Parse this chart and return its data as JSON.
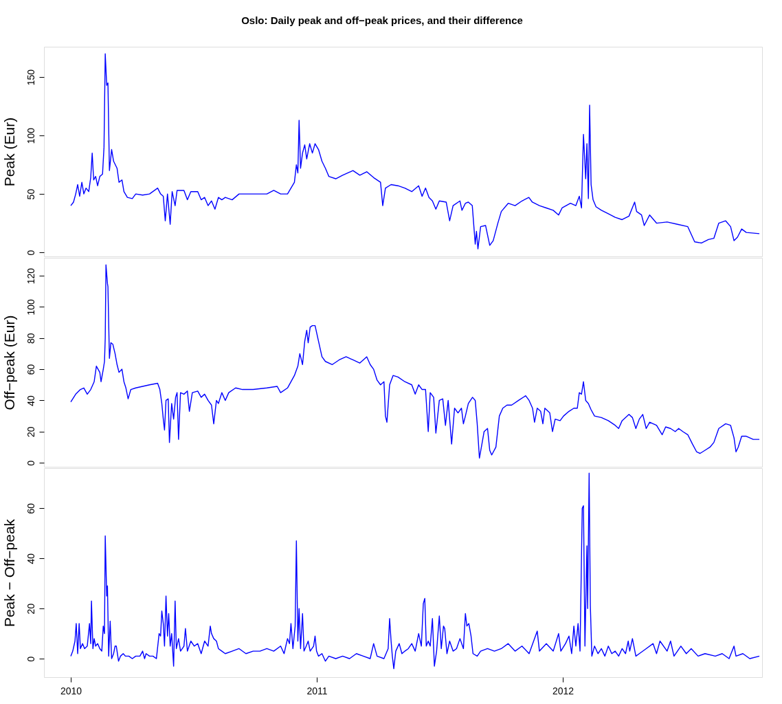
{
  "chart_data": [
    {
      "type": "line",
      "title": "Oslo: Daily peak and off−peak prices, and their difference",
      "ylabel": "Peak (Eur)",
      "xlim": [
        2009.891,
        2012.81
      ],
      "xticks": [
        2010,
        2011,
        2012
      ],
      "ylim": [
        -3.5,
        176
      ],
      "yticks": [
        0,
        50,
        100,
        150
      ],
      "grid": false,
      "tick_labels": "y",
      "marker": "none",
      "line_style": "solid",
      "series": [
        {
          "color": "#0000ff",
          "x": [
            2010.0,
            2010.011,
            2010.02,
            2010.028,
            2010.036,
            2010.045,
            2010.053,
            2010.062,
            2010.073,
            2010.081,
            2010.087,
            2010.093,
            2010.101,
            2010.109,
            2010.118,
            2010.129,
            2010.135,
            2010.14,
            2010.146,
            2010.151,
            2010.157,
            2010.166,
            2010.174,
            2010.188,
            2010.196,
            2010.208,
            2010.216,
            2010.23,
            2010.25,
            2010.264,
            2010.292,
            2010.32,
            2010.353,
            2010.365,
            2010.376,
            2010.384,
            2010.393,
            2010.404,
            2010.412,
            2010.424,
            2010.432,
            2010.46,
            2010.474,
            2010.488,
            2010.516,
            2010.53,
            2010.544,
            2010.558,
            2010.572,
            2010.586,
            2010.6,
            2010.614,
            2010.628,
            2010.656,
            2010.684,
            2010.741,
            2010.797,
            2010.825,
            2010.853,
            2010.881,
            2010.895,
            2010.909,
            2010.917,
            2010.923,
            2010.928,
            2010.934,
            2010.942,
            2010.951,
            2010.959,
            2010.971,
            2010.982,
            2010.993,
            2011.007,
            2011.021,
            2011.035,
            2011.049,
            2011.077,
            2011.105,
            2011.147,
            2011.175,
            2011.203,
            2011.231,
            2011.259,
            2011.268,
            2011.279,
            2011.302,
            2011.33,
            2011.358,
            2011.386,
            2011.414,
            2011.428,
            2011.442,
            2011.456,
            2011.47,
            2011.484,
            2011.498,
            2011.526,
            2011.54,
            2011.554,
            2011.582,
            2011.59,
            2011.604,
            2011.616,
            2011.632,
            2011.644,
            2011.649,
            2011.655,
            2011.666,
            2011.686,
            2011.694,
            2011.703,
            2011.717,
            2011.736,
            2011.75,
            2011.778,
            2011.806,
            2011.834,
            2011.862,
            2011.876,
            2011.905,
            2011.933,
            2011.961,
            2011.983,
            2011.997,
            2012.031,
            2012.053,
            2012.067,
            2012.076,
            2012.084,
            2012.093,
            2012.098,
            2012.104,
            2012.109,
            2012.115,
            2012.123,
            2012.135,
            2012.157,
            2012.185,
            2012.213,
            2012.241,
            2012.269,
            2012.292,
            2012.3,
            2012.32,
            2012.331,
            2012.353,
            2012.381,
            2012.424,
            2012.466,
            2012.508,
            2012.536,
            2012.564,
            2012.592,
            2012.614,
            2012.634,
            2012.662,
            2012.682,
            2012.696,
            2012.71,
            2012.727,
            2012.746,
            2012.799
          ],
          "values": [
            40,
            43,
            50,
            58,
            48,
            60,
            50,
            55,
            52,
            64,
            85,
            62,
            65,
            57,
            65,
            67,
            90,
            170,
            143,
            145,
            70,
            88,
            78,
            72,
            60,
            62,
            52,
            47,
            46,
            50,
            49,
            50,
            55,
            50,
            48,
            27,
            50,
            24,
            52,
            40,
            53,
            53,
            45,
            52,
            52,
            45,
            47,
            40,
            44,
            37,
            47,
            45,
            47,
            45,
            50,
            50,
            50,
            53,
            50,
            50,
            55,
            60,
            75,
            68,
            113,
            72,
            85,
            92,
            80,
            93,
            85,
            93,
            88,
            78,
            72,
            65,
            63,
            66,
            70,
            66,
            69,
            64,
            60,
            40,
            55,
            58,
            57,
            55,
            52,
            57,
            48,
            55,
            47,
            44,
            37,
            44,
            43,
            27,
            40,
            44,
            36,
            42,
            43,
            40,
            7,
            18,
            3,
            22,
            23,
            15,
            6,
            10,
            25,
            35,
            42,
            40,
            44,
            47,
            43,
            40,
            38,
            36,
            32,
            38,
            42,
            40,
            48,
            38,
            101,
            63,
            93,
            46,
            126,
            58,
            45,
            39,
            36,
            33,
            30,
            28,
            31,
            43,
            35,
            32,
            23,
            32,
            25,
            26,
            24,
            22,
            9,
            8,
            11,
            12,
            25,
            27,
            22,
            10,
            13,
            20,
            17,
            16
          ]
        }
      ]
    },
    {
      "type": "line",
      "ylabel": "Off−peak (Eur)",
      "xlim": [
        2009.891,
        2012.81
      ],
      "xticks": [
        2010,
        2011,
        2012
      ],
      "ylim": [
        -2.6,
        131.5
      ],
      "yticks": [
        0,
        20,
        40,
        60,
        80,
        100,
        120
      ],
      "grid": false,
      "tick_labels": "y",
      "marker": "none",
      "line_style": "solid",
      "series": [
        {
          "color": "#0000ff",
          "x": [
            2010.0,
            2010.02,
            2010.039,
            2010.053,
            2010.067,
            2010.081,
            2010.095,
            2010.104,
            2010.118,
            2010.123,
            2010.132,
            2010.137,
            2010.14,
            2010.143,
            2010.149,
            2010.151,
            2010.157,
            2010.163,
            2010.171,
            2010.18,
            2010.188,
            2010.196,
            2010.208,
            2010.216,
            2010.224,
            2010.233,
            2010.244,
            2010.264,
            2010.292,
            2010.32,
            2010.353,
            2010.362,
            2010.37,
            2010.376,
            2010.381,
            2010.387,
            2010.396,
            2010.401,
            2010.41,
            2010.418,
            2010.426,
            2010.432,
            2010.438,
            2010.446,
            2010.46,
            2010.474,
            2010.482,
            2010.494,
            2010.516,
            2010.53,
            2010.544,
            2010.558,
            2010.572,
            2010.581,
            2010.592,
            2010.6,
            2010.614,
            2010.628,
            2010.642,
            2010.67,
            2010.698,
            2010.741,
            2010.797,
            2010.839,
            2010.853,
            2010.881,
            2010.909,
            2010.923,
            2010.931,
            2010.942,
            2010.951,
            2010.959,
            2010.965,
            2010.973,
            2010.982,
            2010.993,
            2011.007,
            2011.021,
            2011.035,
            2011.063,
            2011.091,
            2011.119,
            2011.147,
            2011.175,
            2011.203,
            2011.217,
            2011.231,
            2011.245,
            2011.259,
            2011.273,
            2011.279,
            2011.285,
            2011.296,
            2011.31,
            2011.33,
            2011.358,
            2011.386,
            2011.4,
            2011.414,
            2011.428,
            2011.442,
            2011.453,
            2011.461,
            2011.475,
            2011.484,
            2011.498,
            2011.512,
            2011.523,
            2011.534,
            2011.548,
            2011.56,
            2011.574,
            2011.588,
            2011.596,
            2011.604,
            2011.616,
            2011.633,
            2011.644,
            2011.652,
            2011.661,
            2011.669,
            2011.68,
            2011.694,
            2011.703,
            2011.711,
            2011.728,
            2011.742,
            2011.756,
            2011.773,
            2011.792,
            2011.82,
            2011.849,
            2011.863,
            2011.877,
            2011.885,
            2011.896,
            2011.91,
            2011.919,
            2011.927,
            2011.947,
            2011.958,
            2011.969,
            2011.989,
            2012.003,
            2012.025,
            2012.045,
            2012.059,
            2012.067,
            2012.076,
            2012.084,
            2012.093,
            2012.104,
            2012.115,
            2012.129,
            2012.157,
            2012.185,
            2012.213,
            2012.227,
            2012.241,
            2012.269,
            2012.283,
            2012.297,
            2012.311,
            2012.325,
            2012.339,
            2012.353,
            2012.381,
            2012.404,
            2012.418,
            2012.438,
            2012.457,
            2012.471,
            2012.488,
            2012.508,
            2012.527,
            2012.544,
            2012.558,
            2012.578,
            2012.598,
            2012.614,
            2012.634,
            2012.662,
            2012.682,
            2012.696,
            2012.704,
            2012.713,
            2012.727,
            2012.746,
            2012.774,
            2012.799
          ],
          "values": [
            39,
            44,
            47,
            48,
            44,
            47,
            52,
            62,
            58,
            52,
            60,
            65,
            80,
            127,
            115,
            113,
            67,
            77,
            76,
            70,
            63,
            58,
            60,
            52,
            48,
            41,
            47,
            48,
            49,
            50,
            51,
            47,
            38,
            28,
            21,
            40,
            41,
            13,
            38,
            28,
            42,
            45,
            15,
            45,
            44,
            46,
            33,
            45,
            46,
            42,
            44,
            40,
            37,
            25,
            40,
            38,
            45,
            40,
            45,
            48,
            47,
            47,
            48,
            49,
            45,
            48,
            56,
            62,
            70,
            63,
            78,
            85,
            77,
            87,
            88,
            88,
            78,
            68,
            65,
            63,
            66,
            68,
            66,
            64,
            68,
            63,
            60,
            53,
            50,
            52,
            30,
            26,
            50,
            56,
            55,
            52,
            50,
            44,
            50,
            47,
            47,
            20,
            45,
            42,
            19,
            40,
            41,
            24,
            40,
            12,
            35,
            32,
            35,
            25,
            30,
            38,
            42,
            40,
            25,
            3,
            10,
            20,
            22,
            8,
            5,
            10,
            30,
            35,
            37,
            37,
            40,
            43,
            40,
            35,
            26,
            35,
            33,
            25,
            35,
            32,
            20,
            28,
            27,
            30,
            33,
            35,
            35,
            45,
            44,
            52,
            40,
            38,
            34,
            30,
            29,
            27,
            24,
            22,
            27,
            31,
            29,
            22,
            28,
            31,
            22,
            26,
            24,
            18,
            23,
            22,
            20,
            22,
            20,
            18,
            12,
            7,
            6,
            8,
            10,
            13,
            22,
            25,
            24,
            16,
            7,
            10,
            17,
            17,
            15,
            15
          ]
        }
      ]
    },
    {
      "type": "line",
      "ylabel": "Peak − Off−peak",
      "xlim": [
        2009.891,
        2012.81
      ],
      "xticks": [
        2010,
        2011,
        2012
      ],
      "ylim": [
        -7.4,
        76
      ],
      "yticks": [
        0,
        20,
        40,
        60
      ],
      "grid": false,
      "marker": "none",
      "line_style": "solid",
      "series": [
        {
          "color": "#0000ff",
          "x": [
            2010.0,
            2010.008,
            2010.017,
            2010.022,
            2010.028,
            2010.034,
            2010.039,
            2010.048,
            2010.056,
            2010.067,
            2010.076,
            2010.081,
            2010.084,
            2010.09,
            2010.095,
            2010.101,
            2010.109,
            2010.118,
            2010.126,
            2010.132,
            2010.137,
            2010.14,
            2010.146,
            2010.149,
            2010.154,
            2010.16,
            2010.166,
            2010.174,
            2010.18,
            2010.185,
            2010.194,
            2010.202,
            2010.213,
            2010.222,
            2010.236,
            2010.25,
            2010.264,
            2010.281,
            2010.292,
            2010.3,
            2010.306,
            2010.32,
            2010.334,
            2010.348,
            2010.359,
            2010.365,
            2010.37,
            2010.376,
            2010.381,
            2010.387,
            2010.393,
            2010.398,
            2010.404,
            2010.41,
            2010.418,
            2010.424,
            2010.429,
            2010.438,
            2010.446,
            2010.46,
            2010.466,
            2010.474,
            2010.488,
            2010.502,
            2010.516,
            2010.53,
            2010.544,
            2010.558,
            2010.567,
            2010.572,
            2010.581,
            2010.592,
            2010.6,
            2010.614,
            2010.628,
            2010.656,
            2010.684,
            2010.712,
            2010.741,
            2010.769,
            2010.797,
            2010.825,
            2010.853,
            2010.867,
            2010.881,
            2010.889,
            2010.895,
            2010.903,
            2010.912,
            2010.917,
            2010.923,
            2010.928,
            2010.934,
            2010.942,
            2010.948,
            2010.957,
            2010.965,
            2010.973,
            2010.987,
            2010.993,
            2010.999,
            2011.007,
            2011.021,
            2011.035,
            2011.049,
            2011.077,
            2011.105,
            2011.133,
            2011.161,
            2011.189,
            2011.217,
            2011.231,
            2011.245,
            2011.273,
            2011.29,
            2011.296,
            2011.302,
            2011.307,
            2011.313,
            2011.321,
            2011.335,
            2011.346,
            2011.358,
            2011.372,
            2011.386,
            2011.4,
            2011.414,
            2011.425,
            2011.433,
            2011.439,
            2011.445,
            2011.453,
            2011.461,
            2011.47,
            2011.478,
            2011.487,
            2011.498,
            2011.506,
            2011.515,
            2011.52,
            2011.529,
            2011.54,
            2011.554,
            2011.568,
            2011.582,
            2011.596,
            2011.604,
            2011.61,
            2011.618,
            2011.627,
            2011.635,
            2011.652,
            2011.666,
            2011.694,
            2011.722,
            2011.75,
            2011.778,
            2011.806,
            2011.834,
            2011.863,
            2011.896,
            2011.905,
            2011.933,
            2011.961,
            2011.983,
            2011.992,
            2012.011,
            2012.025,
            2012.036,
            2012.045,
            2012.053,
            2012.062,
            2012.07,
            2012.079,
            2012.084,
            2012.09,
            2012.098,
            2012.101,
            2012.107,
            2012.112,
            2012.118,
            2012.129,
            2012.143,
            2012.157,
            2012.171,
            2012.185,
            2012.199,
            2012.213,
            2012.227,
            2012.241,
            2012.255,
            2012.266,
            2012.272,
            2012.283,
            2012.297,
            2012.311,
            2012.339,
            2012.367,
            2012.381,
            2012.395,
            2012.424,
            2012.438,
            2012.452,
            2012.48,
            2012.502,
            2012.522,
            2012.55,
            2012.578,
            2012.62,
            2012.648,
            2012.676,
            2012.696,
            2012.704,
            2012.732,
            2012.76,
            2012.799
          ],
          "values": [
            1,
            3,
            7,
            14,
            2,
            14,
            4,
            6,
            4,
            5,
            14,
            6,
            23,
            4,
            8,
            5,
            6,
            4,
            3,
            13,
            10,
            49,
            25,
            29,
            1,
            15,
            0,
            2,
            5,
            5,
            -1,
            1,
            2,
            1,
            1,
            0,
            1,
            1,
            3,
            0,
            2,
            1,
            1,
            0,
            10,
            9,
            19,
            14,
            5,
            25,
            9,
            18,
            5,
            10,
            -3,
            23,
            4,
            8,
            3,
            5,
            12,
            3,
            7,
            5,
            6,
            2,
            7,
            5,
            13,
            10,
            8,
            7,
            4,
            3,
            2,
            3,
            4,
            2,
            3,
            3,
            4,
            3,
            5,
            2,
            8,
            6,
            14,
            4,
            13,
            47,
            7,
            20,
            4,
            18,
            3,
            5,
            7,
            3,
            5,
            9,
            3,
            1,
            2,
            -1,
            1,
            0,
            1,
            0,
            2,
            1,
            0,
            6,
            1,
            0,
            4,
            16,
            7,
            1,
            -4,
            3,
            6,
            2,
            3,
            4,
            6,
            3,
            10,
            5,
            22,
            24,
            5,
            7,
            5,
            16,
            -3,
            3,
            17,
            4,
            13,
            12,
            2,
            7,
            3,
            4,
            8,
            4,
            18,
            13,
            14,
            9,
            2,
            1,
            3,
            4,
            3,
            4,
            6,
            3,
            5,
            2,
            11,
            3,
            6,
            3,
            10,
            3,
            6,
            9,
            2,
            13,
            5,
            14,
            3,
            60,
            61,
            5,
            45,
            20,
            74,
            21,
            1,
            5,
            2,
            4,
            1,
            5,
            2,
            3,
            1,
            4,
            2,
            7,
            3,
            8,
            1,
            2,
            4,
            6,
            2,
            7,
            3,
            7,
            1,
            5,
            2,
            4,
            1,
            2,
            1,
            2,
            0,
            5,
            1,
            2,
            0,
            1
          ]
        }
      ]
    }
  ]
}
